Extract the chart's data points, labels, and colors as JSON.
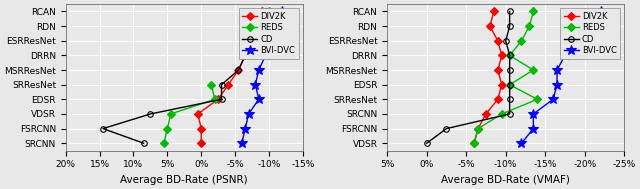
{
  "left_panel": {
    "title": "Average BD-Rate (PSNR)",
    "xlim": [
      20,
      -15
    ],
    "xticks": [
      20,
      15,
      10,
      5,
      0,
      -5,
      -10,
      -15
    ],
    "yticks_labels": [
      "RCAN",
      "RDN",
      "ESRResNet",
      "DRRN",
      "MSRResNet",
      "SRResNet",
      "EDSR",
      "VDSR",
      "FSRCNN",
      "SRCNN"
    ],
    "series": {
      "DIV2K": {
        "color": "#ff0000",
        "marker": "D",
        "markersize": 4,
        "values": [
          -9.0,
          -8.5,
          -7.5,
          -6.5,
          -5.5,
          -4.0,
          -2.5,
          0.5,
          0.0,
          0.0
        ]
      },
      "REDS": {
        "color": "#00bb00",
        "marker": "D",
        "markersize": 4,
        "values": [
          -10.0,
          -9.5,
          -8.5,
          null,
          null,
          -1.5,
          -2.0,
          4.5,
          5.0,
          5.5
        ]
      },
      "CD": {
        "color": "#000000",
        "marker": "o",
        "markersize": 4,
        "values": [
          -9.5,
          -9.0,
          -8.5,
          -6.5,
          -5.5,
          -3.0,
          -3.0,
          7.5,
          14.5,
          8.5
        ]
      },
      "BVI-DVC": {
        "color": "#0000ff",
        "marker": "*",
        "markersize": 7,
        "values": [
          -12.0,
          -11.0,
          -10.0,
          -9.5,
          -8.5,
          -8.0,
          -8.5,
          -7.0,
          -6.5,
          -6.0
        ]
      }
    }
  },
  "right_panel": {
    "title": "Average BD-Rate (VMAF)",
    "xlim": [
      5,
      -25
    ],
    "xticks": [
      5,
      0,
      -5,
      -10,
      -15,
      -20,
      -25
    ],
    "yticks_labels": [
      "RCAN",
      "RDN",
      "ESRResNet",
      "DRRN",
      "MSRResNet",
      "EDSR",
      "SRResNet",
      "SRCNN",
      "FSRCNN",
      "VDSR"
    ],
    "series": {
      "DIV2K": {
        "color": "#ff0000",
        "marker": "D",
        "markersize": 4,
        "values": [
          -8.5,
          -8.0,
          -9.0,
          -9.5,
          -9.0,
          -9.5,
          -9.0,
          -7.5,
          -6.5,
          -6.0
        ]
      },
      "REDS": {
        "color": "#00bb00",
        "marker": "D",
        "markersize": 4,
        "values": [
          -13.5,
          -13.0,
          -12.0,
          -10.5,
          -13.5,
          -10.5,
          -14.0,
          -9.5,
          -6.5,
          -6.0
        ]
      },
      "CD": {
        "color": "#000000",
        "marker": "o",
        "markersize": 4,
        "values": [
          -10.5,
          -10.5,
          -10.0,
          -10.5,
          -10.5,
          -10.5,
          -10.5,
          -10.5,
          -2.5,
          0.0
        ]
      },
      "BVI-DVC": {
        "color": "#0000ff",
        "marker": "*",
        "markersize": 7,
        "values": [
          -22.0,
          -19.5,
          -18.5,
          -17.5,
          -16.5,
          -16.5,
          -16.0,
          -13.5,
          -13.5,
          -12.0
        ]
      }
    }
  },
  "figsize": [
    6.4,
    1.89
  ],
  "dpi": 100,
  "bg_color": "#e8e8e8"
}
